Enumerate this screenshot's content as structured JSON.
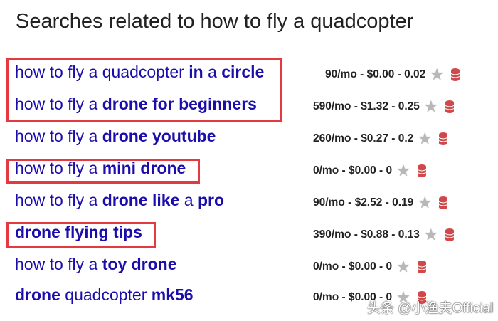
{
  "title": "Searches related to how to fly a quadcopter",
  "rows": [
    {
      "parts": [
        {
          "t": "how to fly a quadcopter ",
          "b": false
        },
        {
          "t": "in",
          "b": true
        },
        {
          "t": " a ",
          "b": false
        },
        {
          "t": "circle",
          "b": true
        }
      ],
      "stats": "90/mo - $0.00 - 0.02"
    },
    {
      "parts": [
        {
          "t": "how to fly a ",
          "b": false
        },
        {
          "t": "drone for beginners",
          "b": true
        }
      ],
      "stats": "590/mo - $1.32 - 0.25"
    },
    {
      "parts": [
        {
          "t": "how to fly a ",
          "b": false
        },
        {
          "t": "drone youtube",
          "b": true
        }
      ],
      "stats": "260/mo - $0.27 - 0.2"
    },
    {
      "parts": [
        {
          "t": "how to fly a ",
          "b": false
        },
        {
          "t": "mini drone",
          "b": true
        }
      ],
      "stats": "0/mo - $0.00 - 0"
    },
    {
      "parts": [
        {
          "t": "how to fly a ",
          "b": false
        },
        {
          "t": "drone like",
          "b": true
        },
        {
          "t": " a ",
          "b": false
        },
        {
          "t": "pro",
          "b": true
        }
      ],
      "stats": "90/mo - $2.52 - 0.19"
    },
    {
      "parts": [
        {
          "t": "drone flying tips",
          "b": true
        }
      ],
      "stats": "390/mo - $0.88 - 0.13"
    },
    {
      "parts": [
        {
          "t": "how to fly a ",
          "b": false
        },
        {
          "t": "toy drone",
          "b": true
        }
      ],
      "stats": "0/mo - $0.00 - 0"
    },
    {
      "parts": [
        {
          "t": "drone",
          "b": true
        },
        {
          "t": " quadcopter ",
          "b": false
        },
        {
          "t": "mk56",
          "b": true
        }
      ],
      "stats": "0/mo - $0.00 - 0"
    }
  ],
  "icons": {
    "star": "star-icon",
    "db": "database-icon"
  },
  "colors": {
    "link": "#1a0dab",
    "highlight_box": "#e5393f",
    "db": "#d0484a"
  },
  "watermark": "头条 @小渔夫Official"
}
